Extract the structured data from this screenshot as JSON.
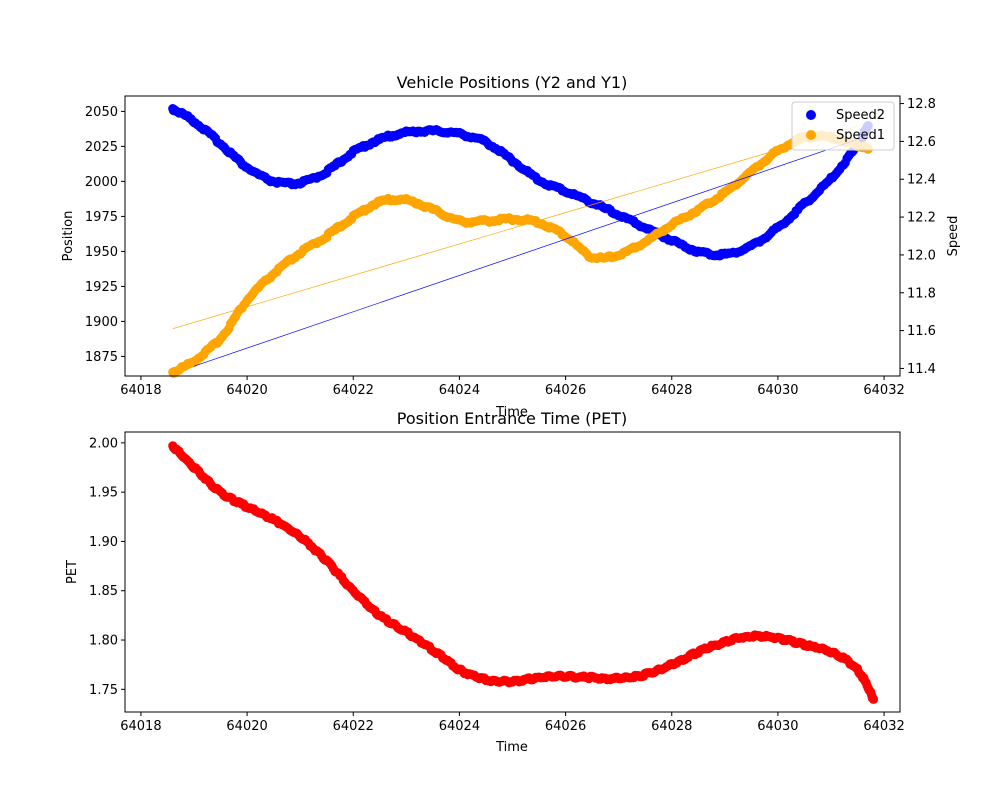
{
  "chart_data": [
    {
      "type": "scatter",
      "title": "Vehicle Positions (Y2 and Y1)",
      "xlabel": "Time",
      "ylabel": "Position",
      "y2label": "Speed",
      "xlim": [
        64017.7,
        64032.3
      ],
      "ylim": [
        1861,
        2061
      ],
      "y2lim": [
        11.36,
        12.84
      ],
      "x_ticks": [
        64018,
        64020,
        64022,
        64024,
        64026,
        64028,
        64030,
        64032
      ],
      "y_ticks": [
        1875,
        1900,
        1925,
        1950,
        1975,
        2000,
        2025,
        2050
      ],
      "y2_ticks": [
        11.4,
        11.6,
        11.8,
        12.0,
        12.2,
        12.4,
        12.6,
        12.8
      ],
      "legend": {
        "position": "top-right",
        "entries": [
          "Speed2",
          "Speed1"
        ]
      },
      "colors": {
        "speed2": "#0000ff",
        "speed1": "#ffa500"
      },
      "series": [
        {
          "name": "Speed2",
          "axis": "left",
          "x": [
            64018.6,
            64019.0,
            64019.5,
            64020.0,
            64020.5,
            64021.0,
            64021.5,
            64022.0,
            64022.5,
            64023.0,
            64023.5,
            64024.0,
            64024.5,
            64025.0,
            64025.5,
            64026.0,
            64026.5,
            64027.0,
            64027.5,
            64028.0,
            64028.5,
            64029.0,
            64029.5,
            64030.0,
            64030.5,
            64031.0,
            64031.5,
            64031.7
          ],
          "y": [
            2052,
            2043,
            2027,
            2010,
            2000,
            1999,
            2007,
            2021,
            2030,
            2035,
            2036,
            2034,
            2028,
            2015,
            2001,
            1993,
            1985,
            1976,
            1967,
            1958,
            1950,
            1948,
            1954,
            1967,
            1984,
            2002,
            2026,
            2040
          ]
        },
        {
          "name": "Speed1",
          "axis": "right",
          "x": [
            64018.6,
            64019.0,
            64019.5,
            64020.0,
            64020.5,
            64021.0,
            64021.5,
            64022.0,
            64022.5,
            64023.0,
            64023.5,
            64024.0,
            64024.5,
            64025.0,
            64025.5,
            64026.0,
            64026.5,
            64027.0,
            64027.5,
            64028.0,
            64028.5,
            64029.0,
            64029.5,
            64030.0,
            64030.5,
            64031.0,
            64031.5,
            64031.7
          ],
          "y": [
            11.38,
            11.44,
            11.56,
            11.76,
            11.9,
            12.01,
            12.1,
            12.2,
            12.28,
            12.29,
            12.24,
            12.18,
            12.18,
            12.19,
            12.17,
            12.1,
            11.99,
            12.0,
            12.07,
            12.16,
            12.24,
            12.33,
            12.44,
            12.55,
            12.62,
            12.62,
            12.58,
            12.56
          ]
        }
      ],
      "trendlines": [
        {
          "series": "Speed2",
          "axis": "left",
          "x": [
            64019.0,
            64031.5
          ],
          "y": [
            1868,
            2030
          ]
        },
        {
          "series": "Speed1",
          "axis": "right",
          "x": [
            64018.6,
            64031.5
          ],
          "y": [
            11.61,
            12.68
          ]
        }
      ]
    },
    {
      "type": "scatter",
      "title": "Position Entrance Time (PET)",
      "xlabel": "Time",
      "ylabel": "PET",
      "xlim": [
        64017.7,
        64032.3
      ],
      "ylim": [
        1.727,
        2.011
      ],
      "x_ticks": [
        64018,
        64020,
        64022,
        64024,
        64026,
        64028,
        64030,
        64032
      ],
      "y_ticks": [
        1.75,
        1.8,
        1.85,
        1.9,
        1.95,
        2.0
      ],
      "colors": {
        "pet": "#ff0000"
      },
      "series": [
        {
          "name": "",
          "x": [
            64018.6,
            64019.0,
            64019.5,
            64020.0,
            64020.5,
            64021.0,
            64021.5,
            64022.0,
            64022.5,
            64023.0,
            64023.5,
            64024.0,
            64024.5,
            64025.0,
            64025.5,
            64026.0,
            64026.5,
            64027.0,
            64027.5,
            64028.0,
            64028.5,
            64029.0,
            64029.5,
            64030.0,
            64030.5,
            64031.0,
            64031.5,
            64031.8
          ],
          "y": [
            1.997,
            1.975,
            1.95,
            1.935,
            1.922,
            1.905,
            1.88,
            1.85,
            1.825,
            1.808,
            1.79,
            1.77,
            1.76,
            1.758,
            1.762,
            1.763,
            1.762,
            1.761,
            1.765,
            1.775,
            1.788,
            1.798,
            1.804,
            1.802,
            1.795,
            1.788,
            1.77,
            1.74
          ]
        }
      ]
    }
  ]
}
